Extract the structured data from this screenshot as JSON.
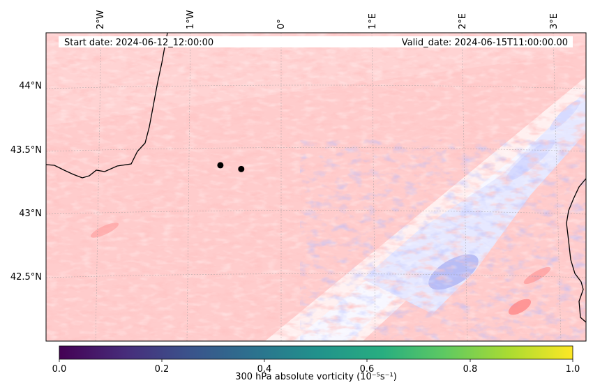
{
  "header": {
    "start_date": "Start date: 2024-06-12_12:00:00",
    "valid_date": "Valid_date: 2024-06-15T11:00:00.00"
  },
  "map": {
    "lon_ticks": [
      "2°W",
      "1°W",
      "0°",
      "1°E",
      "2°E",
      "3°E"
    ],
    "lat_ticks": [
      "44°N",
      "43.5°N",
      "43°N",
      "42.5°N"
    ],
    "extent": {
      "lon": [
        -2.6,
        3.3
      ],
      "lat": [
        42.0,
        44.4
      ]
    },
    "field_colors": {
      "positive": "#ff8080",
      "negative": "#4040ff",
      "neutral": "#ffffff"
    },
    "markers": [
      {
        "lon": -0.67,
        "lat": 43.39
      },
      {
        "lon": -0.44,
        "lat": 43.36
      }
    ],
    "marker_color": "#000000",
    "coastline_color": "#000000"
  },
  "colorbar": {
    "label": "300 hPa absolute vorticity (10⁻⁵s⁻¹)",
    "ticks": [
      "0.0",
      "0.2",
      "0.4",
      "0.6",
      "0.8",
      "1.0"
    ],
    "range": [
      0.0,
      1.0
    ],
    "colormap": "viridis",
    "colors": [
      "#440154",
      "#3b528b",
      "#21918c",
      "#5ec962",
      "#fde725"
    ]
  }
}
